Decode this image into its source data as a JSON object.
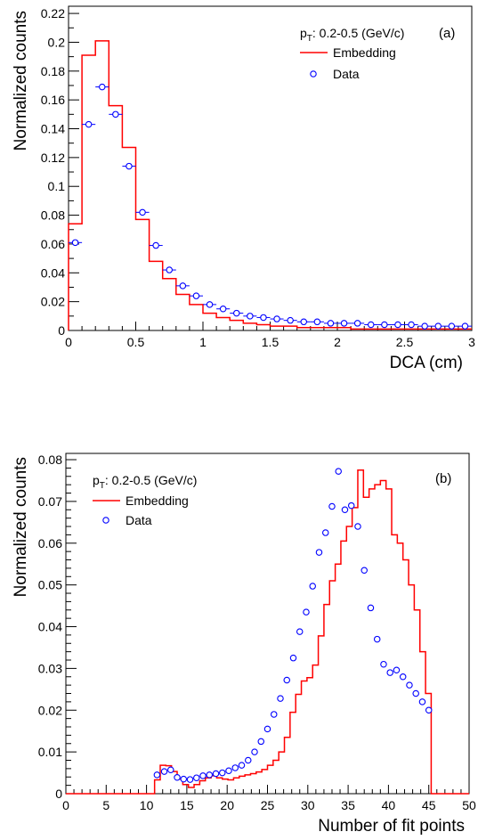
{
  "chart_data": [
    {
      "type": "line",
      "panel_label": "(a)",
      "xlabel": "DCA (cm)",
      "ylabel": "Normalized counts",
      "xlim": [
        0,
        3
      ],
      "ylim": [
        0,
        0.225
      ],
      "x_ticks": [
        "0",
        "0.5",
        "1",
        "1.5",
        "2",
        "2.5",
        "3"
      ],
      "x_tick_values": [
        0,
        0.5,
        1,
        1.5,
        2,
        2.5,
        3
      ],
      "y_ticks": [
        "0",
        "0.02",
        "0.04",
        "0.06",
        "0.08",
        "0.1",
        "0.12",
        "0.14",
        "0.16",
        "0.18",
        "0.2",
        "0.22"
      ],
      "y_tick_values": [
        0,
        0.02,
        0.04,
        0.06,
        0.08,
        0.1,
        0.12,
        0.14,
        0.16,
        0.18,
        0.2,
        0.22
      ],
      "legend": {
        "placement": "top-right",
        "header_base": "p",
        "header_sub": "T",
        "header_rest": ": 0.2-0.5 (GeV/c)"
      },
      "series": [
        {
          "name": "Embedding",
          "style": "step",
          "color": "#ff0000",
          "bin_width": 0.1,
          "x": [
            0.0,
            0.1,
            0.2,
            0.3,
            0.4,
            0.5,
            0.6,
            0.7,
            0.8,
            0.9,
            1.0,
            1.1,
            1.2,
            1.3,
            1.4,
            1.5,
            1.6,
            1.7,
            1.8,
            1.9,
            2.0,
            2.1,
            2.2,
            2.3,
            2.4,
            2.5,
            2.6,
            2.7,
            2.8,
            2.9
          ],
          "values": [
            0.074,
            0.191,
            0.201,
            0.156,
            0.127,
            0.077,
            0.048,
            0.036,
            0.025,
            0.018,
            0.012,
            0.009,
            0.007,
            0.005,
            0.004,
            0.003,
            0.003,
            0.002,
            0.002,
            0.002,
            0.002,
            0.001,
            0.001,
            0.001,
            0.001,
            0.001,
            0.001,
            0.001,
            0.001,
            0.001
          ]
        },
        {
          "name": "Data",
          "style": "markers",
          "color": "#0000ff",
          "xerr": 0.05,
          "x": [
            0.05,
            0.15,
            0.25,
            0.35,
            0.45,
            0.55,
            0.65,
            0.75,
            0.85,
            0.95,
            1.05,
            1.15,
            1.25,
            1.35,
            1.45,
            1.55,
            1.65,
            1.75,
            1.85,
            1.95,
            2.05,
            2.15,
            2.25,
            2.35,
            2.45,
            2.55,
            2.65,
            2.75,
            2.85,
            2.95
          ],
          "values": [
            0.061,
            0.143,
            0.169,
            0.15,
            0.114,
            0.082,
            0.059,
            0.042,
            0.031,
            0.024,
            0.018,
            0.015,
            0.012,
            0.01,
            0.009,
            0.008,
            0.007,
            0.006,
            0.006,
            0.005,
            0.005,
            0.005,
            0.004,
            0.004,
            0.004,
            0.004,
            0.003,
            0.003,
            0.003,
            0.003
          ]
        }
      ]
    },
    {
      "type": "line",
      "panel_label": "(b)",
      "xlabel": "Number of fit points",
      "ylabel": "Normalized counts",
      "xlim": [
        0,
        50
      ],
      "ylim": [
        0,
        0.0815
      ],
      "x_ticks": [
        "0",
        "5",
        "10",
        "15",
        "20",
        "25",
        "30",
        "35",
        "40",
        "45",
        "50"
      ],
      "x_tick_values": [
        0,
        5,
        10,
        15,
        20,
        25,
        30,
        35,
        40,
        45,
        50
      ],
      "y_ticks": [
        "0",
        "0.01",
        "0.02",
        "0.03",
        "0.04",
        "0.05",
        "0.06",
        "0.07",
        "0.08"
      ],
      "y_tick_values": [
        0,
        0.01,
        0.02,
        0.03,
        0.04,
        0.05,
        0.06,
        0.07,
        0.08
      ],
      "legend": {
        "placement": "top-left",
        "header_base": "p",
        "header_sub": "T",
        "header_rest": ": 0.2-0.5 (GeV/c)"
      },
      "series": [
        {
          "name": "Embedding",
          "style": "step",
          "color": "#ff0000",
          "bin_width": 0.7,
          "x": [
            0.0,
            11.0,
            11.7,
            12.4,
            13.1,
            13.8,
            14.5,
            15.2,
            15.9,
            16.6,
            17.3,
            18.0,
            18.7,
            19.4,
            20.1,
            20.8,
            21.5,
            22.2,
            22.9,
            23.6,
            24.3,
            25.0,
            25.7,
            26.4,
            27.1,
            27.8,
            28.5,
            29.2,
            29.9,
            30.6,
            31.3,
            32.0,
            32.7,
            33.4,
            34.1,
            34.8,
            35.5,
            36.2,
            36.9,
            37.6,
            38.3,
            39.0,
            39.7,
            40.4,
            41.1,
            41.8,
            42.5,
            43.2,
            43.9,
            44.6,
            45.3,
            46.0
          ],
          "bin_edges_last": 50,
          "values": [
            0.0,
            0.0033,
            0.0068,
            0.0067,
            0.0053,
            0.0035,
            0.0022,
            0.0015,
            0.0022,
            0.0031,
            0.0038,
            0.0043,
            0.0038,
            0.0035,
            0.0033,
            0.0038,
            0.0042,
            0.0045,
            0.0048,
            0.0052,
            0.0058,
            0.0068,
            0.008,
            0.01,
            0.0135,
            0.0195,
            0.0238,
            0.027,
            0.0278,
            0.0308,
            0.0378,
            0.0453,
            0.051,
            0.055,
            0.0605,
            0.064,
            0.0685,
            0.0775,
            0.071,
            0.073,
            0.074,
            0.075,
            0.073,
            0.062,
            0.06,
            0.056,
            0.05,
            0.044,
            0.034,
            0.024,
            0.0,
            0.0
          ]
        },
        {
          "name": "Data",
          "style": "markers",
          "color": "#0000ff",
          "xerr": 0.35,
          "x": [
            11.3,
            12.2,
            13.0,
            13.8,
            14.6,
            15.4,
            16.2,
            17.0,
            17.8,
            18.6,
            19.4,
            20.2,
            21.0,
            21.8,
            22.6,
            23.4,
            24.2,
            25.0,
            25.8,
            26.6,
            27.4,
            28.2,
            29.0,
            29.8,
            30.6,
            31.4,
            32.2,
            33.0,
            33.8,
            34.6,
            35.4,
            36.2,
            37.0,
            37.8,
            38.6,
            39.4,
            40.2,
            41.0,
            41.8,
            42.6,
            43.4,
            44.2,
            45.0
          ],
          "values": [
            0.0045,
            0.0053,
            0.0057,
            0.0039,
            0.0035,
            0.0034,
            0.0038,
            0.0043,
            0.0045,
            0.0048,
            0.005,
            0.0055,
            0.0062,
            0.0068,
            0.008,
            0.01,
            0.0125,
            0.0155,
            0.019,
            0.0228,
            0.0272,
            0.0325,
            0.0388,
            0.0435,
            0.0497,
            0.0578,
            0.0625,
            0.0688,
            0.0772,
            0.068,
            0.069,
            0.064,
            0.0535,
            0.0445,
            0.037,
            0.031,
            0.029,
            0.0296,
            0.028,
            0.026,
            0.024,
            0.022,
            0.02
          ]
        }
      ]
    }
  ]
}
